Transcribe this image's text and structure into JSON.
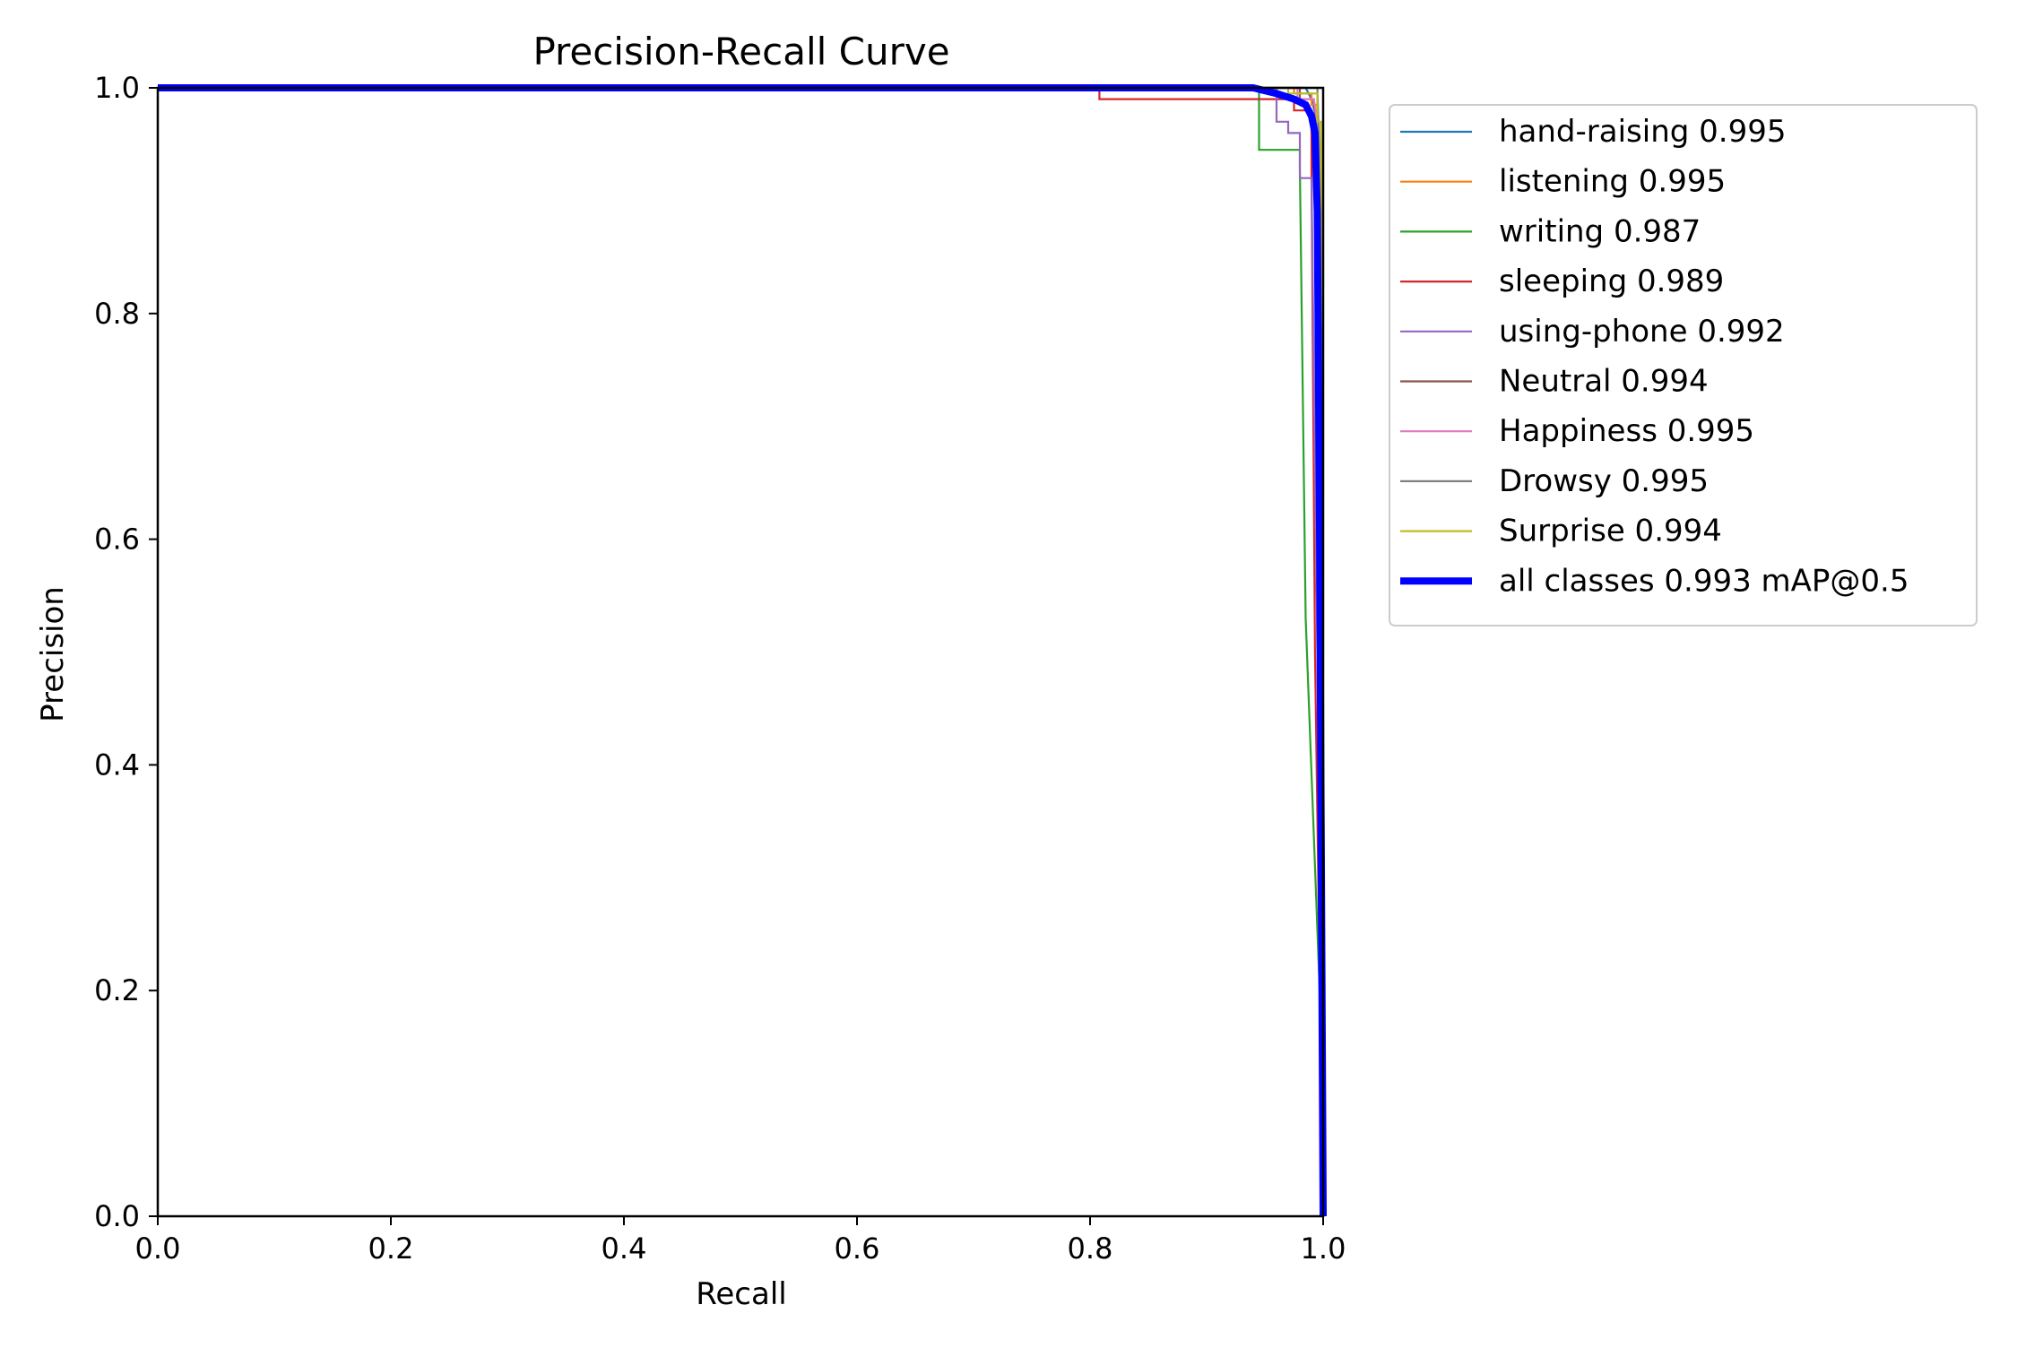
{
  "chart_data": {
    "type": "line",
    "title": "Precision-Recall Curve",
    "xlabel": "Recall",
    "ylabel": "Precision",
    "xlim": [
      0,
      1
    ],
    "ylim": [
      0,
      1
    ],
    "xticks": [
      "0.0",
      "0.2",
      "0.4",
      "0.6",
      "0.8",
      "1.0"
    ],
    "yticks": [
      "0.0",
      "0.2",
      "0.4",
      "0.6",
      "0.8",
      "1.0"
    ],
    "grid": false,
    "legend_position": "outside-right-top",
    "series": [
      {
        "name": "hand-raising 0.995",
        "color": "#1f77b4",
        "width": "thin",
        "points": [
          [
            0,
            1
          ],
          [
            0.985,
            1
          ],
          [
            0.99,
            0.99
          ],
          [
            0.995,
            0.97
          ],
          [
            0.998,
            0.6
          ],
          [
            1.0,
            0
          ]
        ]
      },
      {
        "name": "listening 0.995",
        "color": "#ff7f0e",
        "width": "thin",
        "points": [
          [
            0,
            1
          ],
          [
            0.975,
            1
          ],
          [
            0.975,
            0.995
          ],
          [
            0.99,
            0.995
          ],
          [
            0.99,
            0.985
          ],
          [
            0.995,
            0.985
          ],
          [
            0.995,
            0.95
          ],
          [
            0.998,
            0.95
          ],
          [
            0.999,
            0.6
          ],
          [
            1.0,
            0
          ]
        ]
      },
      {
        "name": "writing 0.987",
        "color": "#2ca02c",
        "width": "thin",
        "points": [
          [
            0,
            1
          ],
          [
            0.945,
            1
          ],
          [
            0.945,
            0.945
          ],
          [
            0.98,
            0.945
          ],
          [
            0.98,
            0.93
          ],
          [
            0.985,
            0.53
          ],
          [
            0.997,
            0.2
          ],
          [
            1.0,
            0
          ]
        ]
      },
      {
        "name": "sleeping 0.989",
        "color": "#d62728",
        "width": "thin",
        "points": [
          [
            0,
            1
          ],
          [
            0.808,
            1
          ],
          [
            0.808,
            0.99
          ],
          [
            0.975,
            0.99
          ],
          [
            0.975,
            0.98
          ],
          [
            0.99,
            0.98
          ],
          [
            0.99,
            0.93
          ],
          [
            0.993,
            0.5
          ],
          [
            1.0,
            0
          ]
        ]
      },
      {
        "name": "using-phone 0.992",
        "color": "#9467bd",
        "width": "thin",
        "points": [
          [
            0,
            1
          ],
          [
            0.96,
            1
          ],
          [
            0.96,
            0.97
          ],
          [
            0.97,
            0.97
          ],
          [
            0.97,
            0.96
          ],
          [
            0.98,
            0.96
          ],
          [
            0.98,
            0.92
          ],
          [
            0.99,
            0.92
          ],
          [
            0.995,
            0.5
          ],
          [
            1.0,
            0
          ]
        ]
      },
      {
        "name": "Neutral 0.994",
        "color": "#8c564b",
        "width": "thin",
        "points": [
          [
            0,
            1
          ],
          [
            0.98,
            1
          ],
          [
            0.98,
            0.99
          ],
          [
            0.992,
            0.99
          ],
          [
            0.995,
            0.95
          ],
          [
            0.998,
            0.5
          ],
          [
            1.0,
            0
          ]
        ]
      },
      {
        "name": "Happiness 0.995",
        "color": "#e377c2",
        "width": "thin",
        "points": [
          [
            0,
            1
          ],
          [
            0.978,
            1
          ],
          [
            0.978,
            0.99
          ],
          [
            0.992,
            0.99
          ],
          [
            0.995,
            0.97
          ],
          [
            0.999,
            0.6
          ],
          [
            1.0,
            0
          ]
        ]
      },
      {
        "name": "Drowsy 0.995",
        "color": "#7f7f7f",
        "width": "thin",
        "points": [
          [
            0,
            1
          ],
          [
            0.995,
            1
          ],
          [
            0.998,
            0.9
          ],
          [
            1.0,
            0
          ]
        ]
      },
      {
        "name": "Surprise 0.994",
        "color": "#bcbd22",
        "width": "thin",
        "points": [
          [
            0,
            1
          ],
          [
            0.97,
            1
          ],
          [
            0.97,
            0.995
          ],
          [
            0.995,
            0.995
          ],
          [
            0.995,
            0.97
          ],
          [
            0.998,
            0.97
          ],
          [
            0.999,
            0.55
          ],
          [
            1.0,
            0
          ]
        ]
      },
      {
        "name": "all classes 0.993 mAP@0.5",
        "color": "#0000ff",
        "width": "thick",
        "points": [
          [
            0,
            1
          ],
          [
            0.94,
            1
          ],
          [
            0.96,
            0.995
          ],
          [
            0.975,
            0.99
          ],
          [
            0.985,
            0.985
          ],
          [
            0.99,
            0.975
          ],
          [
            0.993,
            0.96
          ],
          [
            0.995,
            0.89
          ],
          [
            0.997,
            0.6
          ],
          [
            0.999,
            0.2
          ],
          [
            1.0,
            0
          ]
        ]
      }
    ]
  }
}
